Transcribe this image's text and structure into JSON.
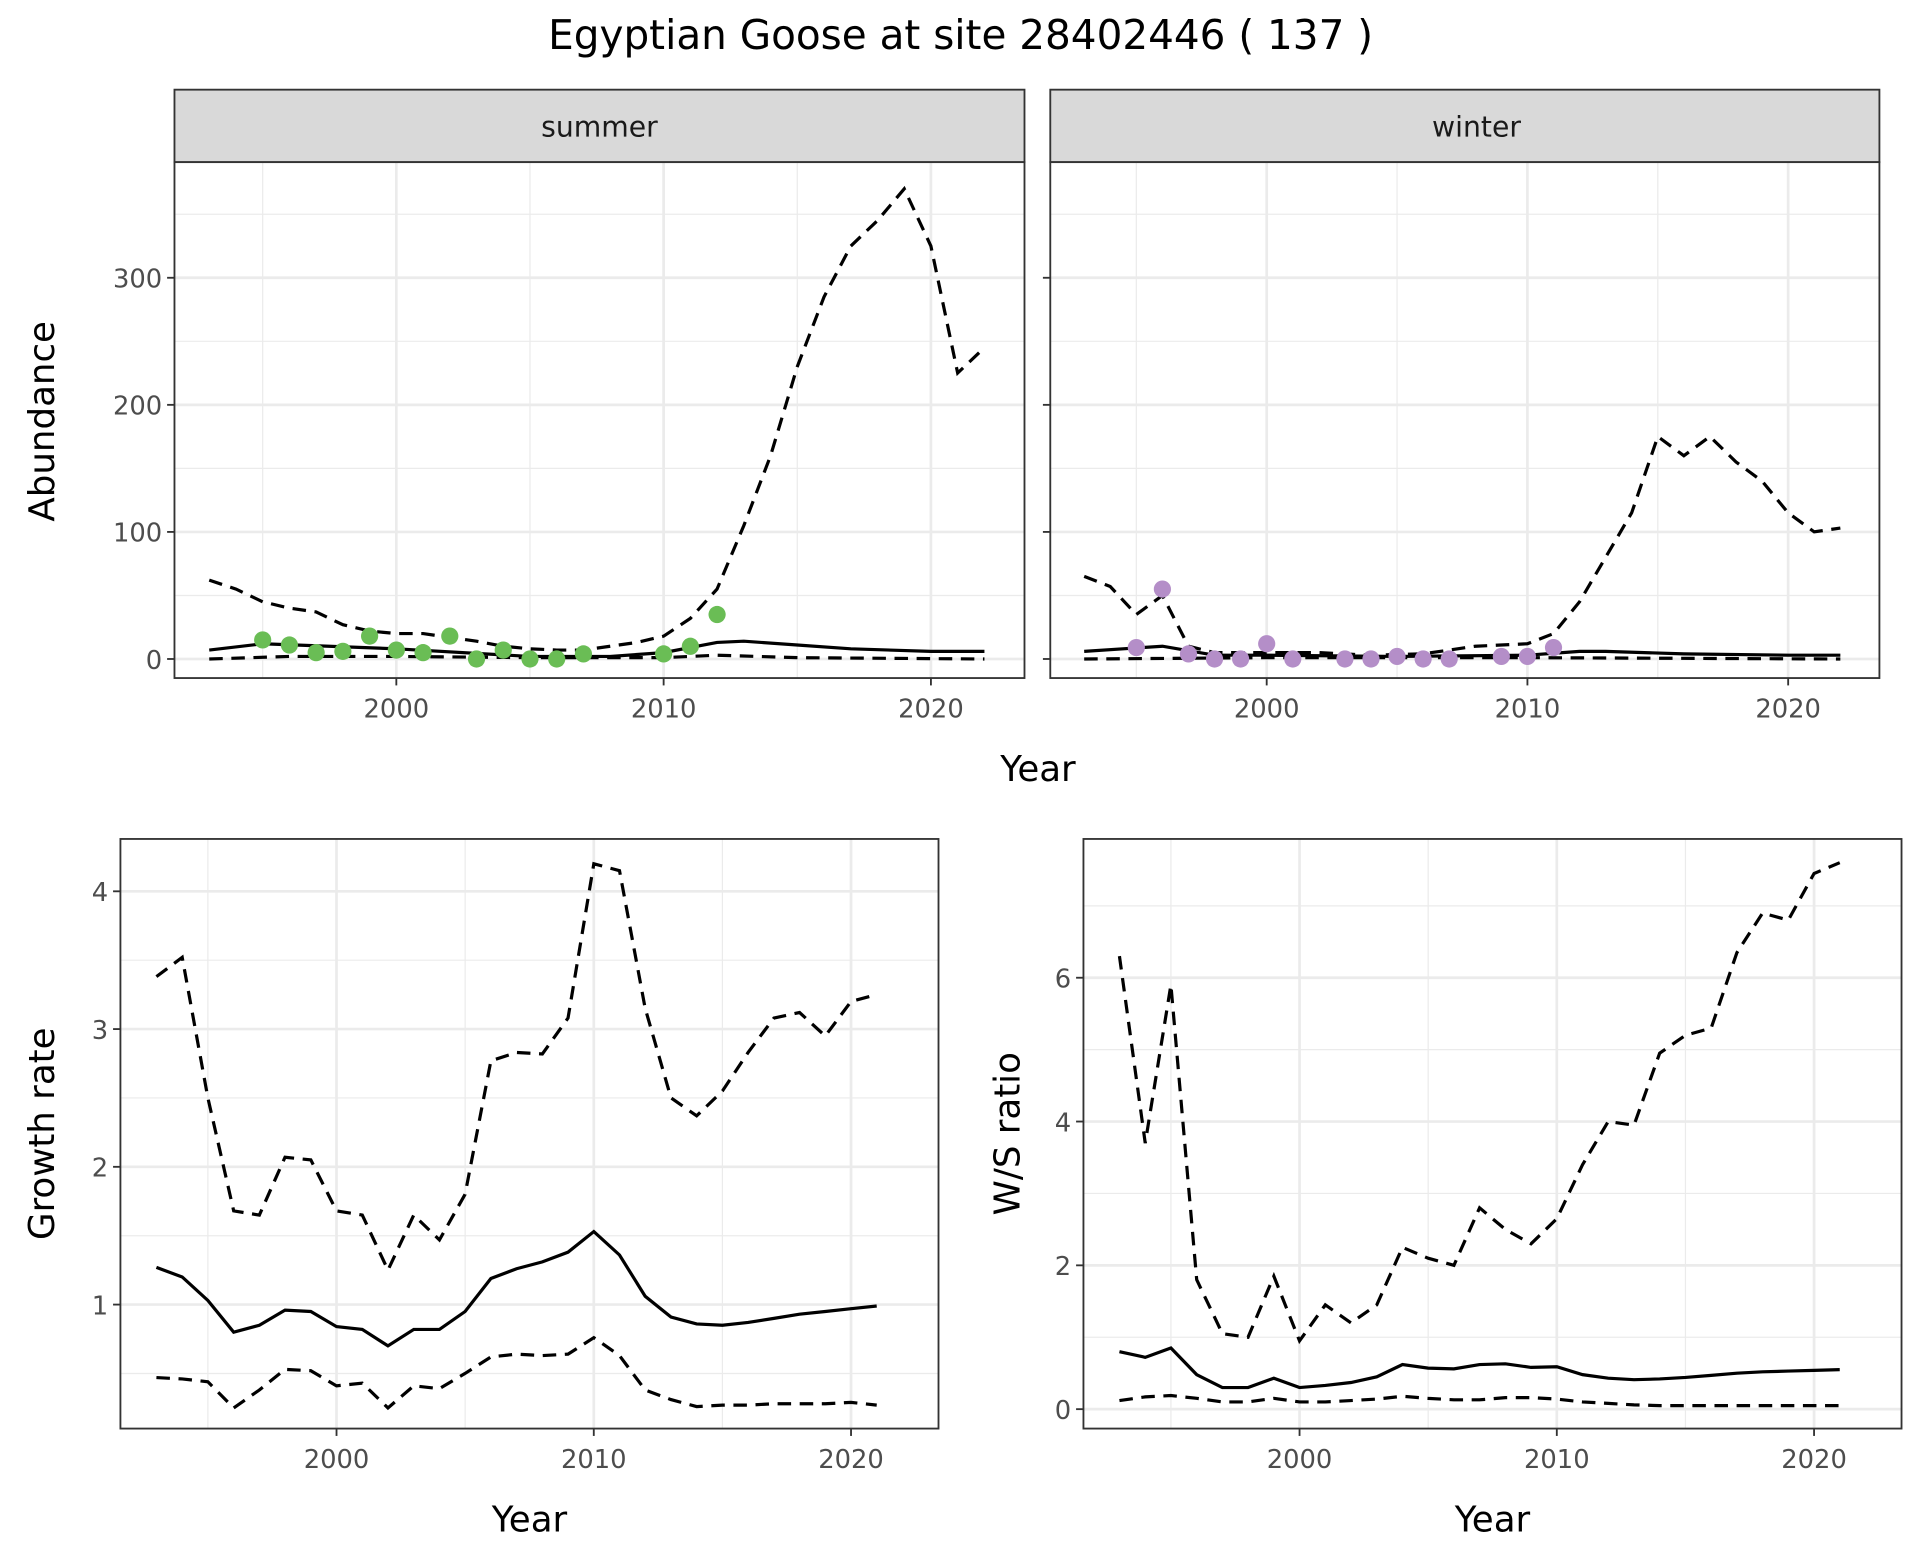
{
  "title": "Egyptian Goose at site 28402446 ( 137 )",
  "colors": {
    "summer_points": "#6abd55",
    "winter_points": "#b48ec8",
    "line": "#000000",
    "strip": "#d9d9d9",
    "grid": "#ebebeb"
  },
  "chart_data": [
    {
      "type": "scatter+line",
      "facet": "summer",
      "xlabel": "Year",
      "ylabel": "Abundance",
      "xlim": [
        1991.7,
        2023.5
      ],
      "ylim": [
        -15,
        391
      ],
      "xticks": [
        2000,
        2010,
        2020
      ],
      "yticks": [
        0,
        100,
        200,
        300
      ],
      "grid": true,
      "points": {
        "x": [
          1995,
          1996,
          1997,
          1998,
          1999,
          2000,
          2001,
          2002,
          2003,
          2004,
          2005,
          2006,
          2007,
          2010,
          2011,
          2012
        ],
        "y": [
          15,
          11,
          5,
          6,
          18,
          7,
          5,
          18,
          0,
          7,
          0,
          0,
          4,
          4,
          10,
          35
        ]
      },
      "fit": {
        "x": [
          1993,
          1995,
          2000,
          2005,
          2008,
          2010,
          2012,
          2013,
          2015,
          2017,
          2020,
          2022
        ],
        "y": [
          7,
          12,
          8,
          2,
          2,
          5,
          13,
          14,
          11,
          8,
          6,
          6
        ]
      },
      "upper": {
        "x": [
          1993,
          1994,
          1995,
          1996,
          1997,
          1998,
          1999,
          2000,
          2001,
          2002,
          2003,
          2004,
          2005,
          2006,
          2007,
          2008,
          2009,
          2010,
          2011,
          2012,
          2013,
          2014,
          2015,
          2016,
          2017,
          2018,
          2019,
          2020,
          2021,
          2022
        ],
        "y": [
          62,
          55,
          45,
          40,
          37,
          27,
          22,
          20,
          20,
          17,
          14,
          10,
          8,
          7,
          7,
          10,
          13,
          18,
          32,
          55,
          105,
          160,
          230,
          285,
          325,
          345,
          370,
          325,
          225,
          245
        ]
      },
      "lower": {
        "x": [
          1993,
          1996,
          2000,
          2005,
          2010,
          2012,
          2015,
          2022
        ],
        "y": [
          0,
          2,
          2,
          1,
          1,
          3,
          1,
          0
        ]
      }
    },
    {
      "type": "scatter+line",
      "facet": "winter",
      "xlabel": "Year",
      "ylabel": "Abundance",
      "xlim": [
        1991.7,
        2023.5
      ],
      "ylim": [
        -15,
        391
      ],
      "xticks": [
        2000,
        2010,
        2020
      ],
      "yticks": [
        0,
        100,
        200,
        300
      ],
      "grid": true,
      "points": {
        "x": [
          1995,
          1996,
          1997,
          1998,
          1999,
          2000,
          2001,
          2003,
          2004,
          2005,
          2006,
          2007,
          2009,
          2010,
          2011
        ],
        "y": [
          9,
          55,
          4,
          0,
          0,
          12,
          0,
          0,
          0,
          2,
          0,
          0,
          2,
          2,
          9
        ]
      },
      "fit": {
        "x": [
          1993,
          1996,
          1998,
          2000,
          2005,
          2010,
          2012,
          2013,
          2016,
          2020,
          2022
        ],
        "y": [
          6,
          10,
          3,
          3,
          2,
          3,
          6,
          6,
          4,
          3,
          3
        ]
      },
      "upper": {
        "x": [
          1993,
          1994,
          1995,
          1996,
          1997,
          1998,
          2000,
          2002,
          2004,
          2006,
          2008,
          2010,
          2011,
          2012,
          2013,
          2014,
          2015,
          2016,
          2017,
          2018,
          2019,
          2020,
          2021,
          2022
        ],
        "y": [
          65,
          57,
          35,
          50,
          10,
          5,
          5,
          5,
          3,
          4,
          10,
          12,
          20,
          45,
          80,
          115,
          175,
          160,
          175,
          155,
          140,
          115,
          100,
          103
        ]
      },
      "lower": {
        "x": [
          1993,
          2000,
          2010,
          2022
        ],
        "y": [
          0,
          1,
          1,
          0
        ]
      }
    },
    {
      "type": "line",
      "xlabel": "Year",
      "ylabel": "Growth rate",
      "xlim": [
        1991.6,
        2023.4
      ],
      "ylim": [
        0.1,
        4.38
      ],
      "xticks": [
        2000,
        2010,
        2020
      ],
      "yticks": [
        1,
        2,
        3,
        4
      ],
      "grid": true,
      "x": [
        1993,
        1994,
        1995,
        1996,
        1997,
        1998,
        1999,
        2000,
        2001,
        2002,
        2003,
        2004,
        2005,
        2006,
        2007,
        2008,
        2009,
        2010,
        2011,
        2012,
        2013,
        2014,
        2015,
        2016,
        2017,
        2018,
        2019,
        2020,
        2021
      ],
      "fit": [
        1.27,
        1.2,
        1.03,
        0.8,
        0.85,
        0.96,
        0.95,
        0.84,
        0.82,
        0.7,
        0.82,
        0.82,
        0.95,
        1.19,
        1.26,
        1.31,
        1.38,
        1.53,
        1.36,
        1.06,
        0.91,
        0.86,
        0.85,
        0.87,
        0.9,
        0.93,
        0.95,
        0.97,
        0.99
      ],
      "upper": [
        3.38,
        3.52,
        2.5,
        1.68,
        1.65,
        2.07,
        2.05,
        1.68,
        1.65,
        1.25,
        1.65,
        1.47,
        1.8,
        2.77,
        2.83,
        2.82,
        3.08,
        4.2,
        4.15,
        3.15,
        2.5,
        2.37,
        2.55,
        2.83,
        3.08,
        3.12,
        2.95,
        3.2,
        3.25
      ],
      "lower": [
        0.47,
        0.46,
        0.44,
        0.25,
        0.38,
        0.53,
        0.52,
        0.41,
        0.43,
        0.25,
        0.41,
        0.39,
        0.5,
        0.62,
        0.64,
        0.63,
        0.64,
        0.76,
        0.63,
        0.38,
        0.31,
        0.26,
        0.27,
        0.27,
        0.28,
        0.28,
        0.28,
        0.29,
        0.27
      ]
    },
    {
      "type": "line",
      "xlabel": "Year",
      "ylabel": "W/S ratio",
      "xlim": [
        1991.6,
        2023.4
      ],
      "ylim": [
        -0.27,
        7.93
      ],
      "xticks": [
        2000,
        2010,
        2020
      ],
      "yticks": [
        0,
        2,
        4,
        6
      ],
      "grid": true,
      "x": [
        1993,
        1994,
        1995,
        1996,
        1997,
        1998,
        1999,
        2000,
        2001,
        2002,
        2003,
        2004,
        2005,
        2006,
        2007,
        2008,
        2009,
        2010,
        2011,
        2012,
        2013,
        2014,
        2015,
        2016,
        2017,
        2018,
        2019,
        2020,
        2021
      ],
      "fit": [
        0.8,
        0.72,
        0.85,
        0.48,
        0.3,
        0.3,
        0.43,
        0.3,
        0.33,
        0.37,
        0.45,
        0.62,
        0.57,
        0.56,
        0.62,
        0.63,
        0.58,
        0.59,
        0.48,
        0.43,
        0.41,
        0.42,
        0.44,
        0.47,
        0.5,
        0.52,
        0.53,
        0.54,
        0.55
      ],
      "upper": [
        6.3,
        3.7,
        5.9,
        1.8,
        1.05,
        1.0,
        1.85,
        0.95,
        1.45,
        1.2,
        1.45,
        2.25,
        2.1,
        2.0,
        2.8,
        2.5,
        2.3,
        2.65,
        3.4,
        4.0,
        3.95,
        4.95,
        5.2,
        5.3,
        6.35,
        6.9,
        6.8,
        7.45,
        7.6
      ],
      "lower": [
        0.12,
        0.17,
        0.19,
        0.15,
        0.1,
        0.1,
        0.15,
        0.1,
        0.1,
        0.12,
        0.14,
        0.18,
        0.15,
        0.13,
        0.13,
        0.16,
        0.16,
        0.14,
        0.1,
        0.08,
        0.06,
        0.05,
        0.05,
        0.05,
        0.05,
        0.05,
        0.05,
        0.05,
        0.05
      ]
    }
  ]
}
